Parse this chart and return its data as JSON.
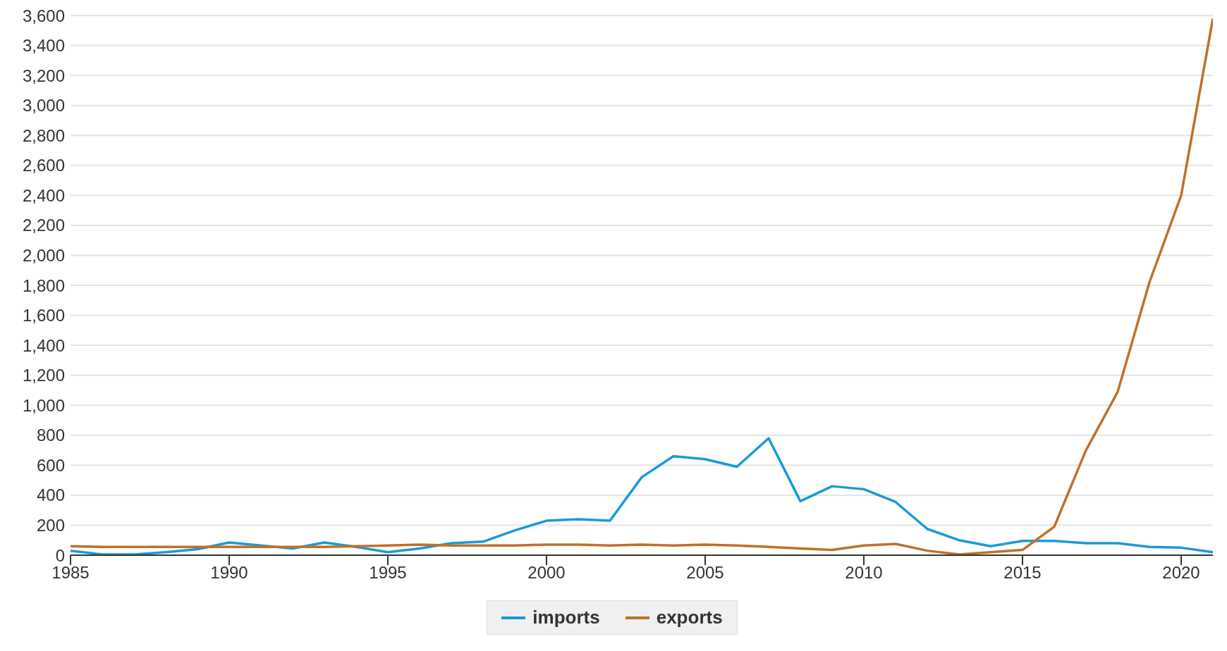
{
  "chart_data": {
    "type": "line",
    "x": [
      1985,
      1986,
      1987,
      1988,
      1989,
      1990,
      1991,
      1992,
      1993,
      1994,
      1995,
      1996,
      1997,
      1998,
      1999,
      2000,
      2001,
      2002,
      2003,
      2004,
      2005,
      2006,
      2007,
      2008,
      2009,
      2010,
      2011,
      2012,
      2013,
      2014,
      2015,
      2016,
      2017,
      2018,
      2019,
      2020,
      2021
    ],
    "series": [
      {
        "name": "imports",
        "color": "#1a9ad6",
        "values": [
          30,
          5,
          5,
          20,
          40,
          85,
          65,
          45,
          85,
          55,
          20,
          45,
          80,
          90,
          165,
          230,
          240,
          230,
          520,
          660,
          640,
          590,
          780,
          360,
          460,
          440,
          355,
          175,
          100,
          60,
          95,
          95,
          80,
          80,
          55,
          50,
          20
        ]
      },
      {
        "name": "exports",
        "color": "#c0702a",
        "values": [
          60,
          55,
          55,
          55,
          55,
          55,
          55,
          55,
          55,
          60,
          65,
          70,
          65,
          65,
          65,
          70,
          70,
          65,
          70,
          65,
          70,
          65,
          55,
          45,
          35,
          65,
          75,
          30,
          5,
          20,
          35,
          190,
          700,
          1090,
          1820,
          2400,
          3580
        ]
      }
    ],
    "xlim": [
      1985,
      2021
    ],
    "xticks": [
      1985,
      1990,
      1995,
      2000,
      2005,
      2010,
      2015,
      2020
    ],
    "ylim": [
      0,
      3600
    ],
    "yticks": [
      0,
      200,
      400,
      600,
      800,
      {
        "value": 1000,
        "label": "1,000"
      },
      {
        "value": 1200,
        "label": "1,200"
      },
      {
        "value": 1400,
        "label": "1,400"
      },
      {
        "value": 1600,
        "label": "1,600"
      },
      {
        "value": 1800,
        "label": "1,800"
      },
      {
        "value": 2000,
        "label": "2,000"
      },
      {
        "value": 2200,
        "label": "2,200"
      },
      {
        "value": 2400,
        "label": "2,400"
      },
      {
        "value": 2600,
        "label": "2,600"
      },
      {
        "value": 2800,
        "label": "2,800"
      },
      {
        "value": 3000,
        "label": "3,000"
      },
      {
        "value": 3200,
        "label": "3,200"
      },
      {
        "value": 3400,
        "label": "3,400"
      },
      {
        "value": 3600,
        "label": "3,600"
      }
    ],
    "grid": "y",
    "legend": "bottom",
    "marker": "none",
    "line_style": "solid"
  }
}
